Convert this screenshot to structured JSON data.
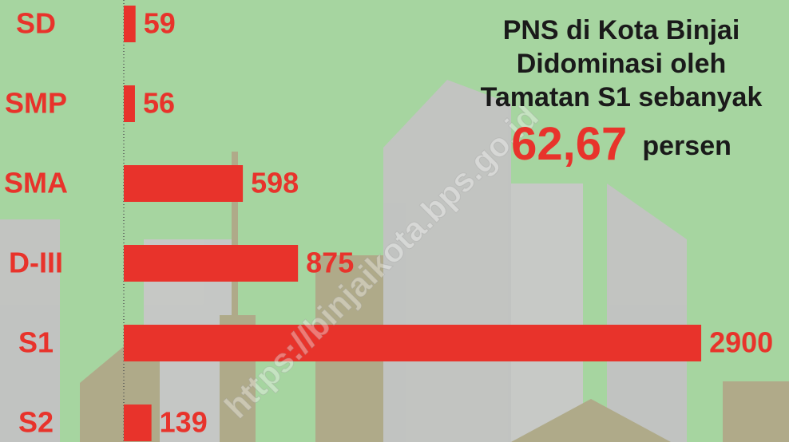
{
  "chart_data": {
    "type": "hbar",
    "title_lines": [
      "PNS di Kota Binjai",
      "Didominasi oleh",
      "Tamatan S1 sebanyak"
    ],
    "highlight_value": "62,67",
    "highlight_unit": "persen",
    "watermark": "https://binjaikota.bps.go.id",
    "categories": [
      "SD",
      "SMP",
      "SMA",
      "D-III",
      "S1",
      "S2"
    ],
    "values": [
      59,
      56,
      598,
      875,
      2900,
      139
    ],
    "color": "#e8332b",
    "xlim": [
      0,
      3000
    ]
  }
}
